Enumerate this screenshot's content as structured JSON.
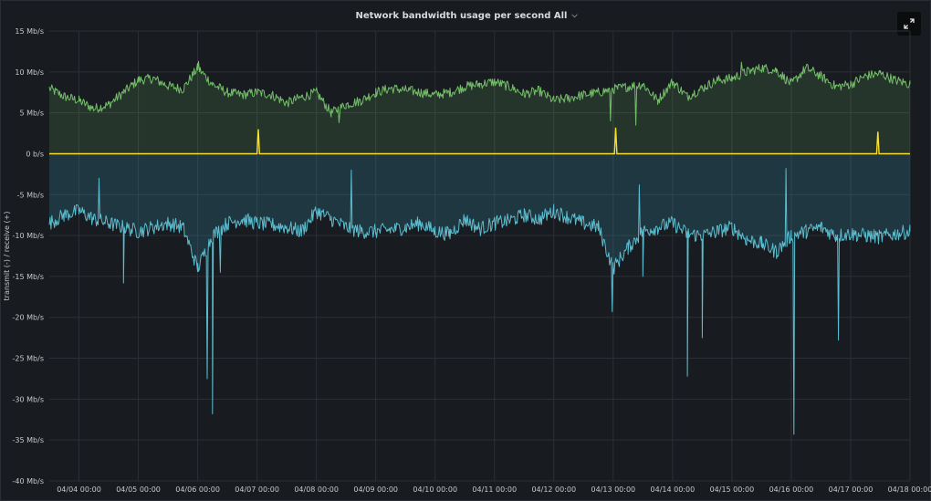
{
  "panel": {
    "title": "Network bandwidth usage per second All",
    "expand_icon": "expand-icon",
    "menu_icon": "chevron-down-icon"
  },
  "chart_data": {
    "type": "area",
    "title": "Network bandwidth usage per second All",
    "ylabel": "transmit (-) / receive (+)",
    "xlabel": "",
    "ylim": [
      -40,
      15
    ],
    "y_unit": "Mb/s",
    "y_ticks": [
      15,
      10,
      5,
      0,
      -5,
      -10,
      -15,
      -20,
      -25,
      -30,
      -35,
      -40
    ],
    "y_tick_labels": [
      "15 Mb/s",
      "10 Mb/s",
      "5 Mb/s",
      "0 b/s",
      "-5 Mb/s",
      "-10 Mb/s",
      "-15 Mb/s",
      "-20 Mb/s",
      "-25 Mb/s",
      "-30 Mb/s",
      "-35 Mb/s",
      "-40 Mb/s"
    ],
    "x_start": "04/03 12:00",
    "x_end": "04/18 00:00",
    "x_tick_labels": [
      "04/04 00:00",
      "04/05 00:00",
      "04/06 00:00",
      "04/07 00:00",
      "04/08 00:00",
      "04/09 00:00",
      "04/10 00:00",
      "04/11 00:00",
      "04/12 00:00",
      "04/13 00:00",
      "04/14 00:00",
      "04/15 00:00",
      "04/16 00:00",
      "04/17 00:00",
      "04/18 00:00"
    ],
    "grid": true,
    "legend": "none",
    "series": [
      {
        "role": "receive",
        "color": "#73bf69",
        "x": [
          "04/03 12:00",
          "04/03 18:00",
          "04/04 00:00",
          "04/04 06:00",
          "04/04 12:00",
          "04/04 18:00",
          "04/05 00:00",
          "04/05 06:00",
          "04/05 12:00",
          "04/05 18:00",
          "04/06 00:00",
          "04/06 06:00",
          "04/06 12:00",
          "04/06 18:00",
          "04/07 00:00",
          "04/07 06:00",
          "04/07 12:00",
          "04/07 18:00",
          "04/08 00:00",
          "04/08 06:00",
          "04/08 12:00",
          "04/08 18:00",
          "04/09 00:00",
          "04/09 06:00",
          "04/09 12:00",
          "04/09 18:00",
          "04/10 00:00",
          "04/10 06:00",
          "04/10 12:00",
          "04/10 18:00",
          "04/11 00:00",
          "04/11 06:00",
          "04/11 12:00",
          "04/11 18:00",
          "04/12 00:00",
          "04/12 06:00",
          "04/12 12:00",
          "04/12 18:00",
          "04/13 00:00",
          "04/13 06:00",
          "04/13 12:00",
          "04/13 18:00",
          "04/14 00:00",
          "04/14 06:00",
          "04/14 12:00",
          "04/14 18:00",
          "04/15 00:00",
          "04/15 06:00",
          "04/15 12:00",
          "04/15 18:00",
          "04/16 00:00",
          "04/16 06:00",
          "04/16 12:00",
          "04/16 18:00",
          "04/17 00:00",
          "04/17 06:00",
          "04/17 12:00",
          "04/17 18:00",
          "04/18 00:00"
        ],
        "values": [
          8,
          7,
          6.5,
          5.5,
          6,
          7.5,
          9,
          9.2,
          8.3,
          7.9,
          10.5,
          8.5,
          7.5,
          7.2,
          7.5,
          7.2,
          6.2,
          6.9,
          7.5,
          5,
          6,
          6.5,
          7.5,
          8,
          7.8,
          7.5,
          7.2,
          7.5,
          8.2,
          8.5,
          8.8,
          8.2,
          7.3,
          7.7,
          6.5,
          6.8,
          7.2,
          7.5,
          7.9,
          8.2,
          8.5,
          6.5,
          8.8,
          7,
          8,
          9,
          9.2,
          10,
          10.5,
          10.2,
          8.5,
          10.5,
          9.5,
          8.2,
          8.5,
          9.5,
          9.8,
          9,
          8.5
        ]
      },
      {
        "role": "transmit",
        "color": "#5bbdcf",
        "x": [
          "04/03 12:00",
          "04/03 18:00",
          "04/04 00:00",
          "04/04 06:00",
          "04/04 12:00",
          "04/04 18:00",
          "04/05 00:00",
          "04/05 06:00",
          "04/05 12:00",
          "04/05 18:00",
          "04/06 00:00",
          "04/06 06:00",
          "04/06 12:00",
          "04/06 18:00",
          "04/07 00:00",
          "04/07 06:00",
          "04/07 12:00",
          "04/07 18:00",
          "04/08 00:00",
          "04/08 06:00",
          "04/08 12:00",
          "04/08 18:00",
          "04/09 00:00",
          "04/09 06:00",
          "04/09 12:00",
          "04/09 18:00",
          "04/10 00:00",
          "04/10 06:00",
          "04/10 12:00",
          "04/10 18:00",
          "04/11 00:00",
          "04/11 06:00",
          "04/11 12:00",
          "04/11 18:00",
          "04/12 00:00",
          "04/12 06:00",
          "04/12 12:00",
          "04/12 18:00",
          "04/13 00:00",
          "04/13 06:00",
          "04/13 12:00",
          "04/13 18:00",
          "04/14 00:00",
          "04/14 06:00",
          "04/14 12:00",
          "04/14 18:00",
          "04/15 00:00",
          "04/15 06:00",
          "04/15 12:00",
          "04/15 18:00",
          "04/16 00:00",
          "04/16 06:00",
          "04/16 12:00",
          "04/16 18:00",
          "04/17 00:00",
          "04/17 06:00",
          "04/17 12:00",
          "04/17 18:00",
          "04/18 00:00"
        ],
        "values": [
          -8.5,
          -7.5,
          -7,
          -8,
          -8.5,
          -9,
          -9.5,
          -9,
          -8.5,
          -9,
          -14,
          -10,
          -8.5,
          -8,
          -8.5,
          -8.7,
          -9,
          -9.5,
          -7,
          -8,
          -9,
          -9.5,
          -9.5,
          -9.3,
          -9,
          -8.5,
          -9.5,
          -9.8,
          -8,
          -9.2,
          -8.5,
          -8.2,
          -7.5,
          -8,
          -7,
          -7.8,
          -8.5,
          -9,
          -14,
          -11.5,
          -9.5,
          -9,
          -8.5,
          -9.8,
          -10,
          -9.5,
          -9,
          -10.5,
          -11,
          -12,
          -10,
          -9.5,
          -9,
          -10,
          -9.8,
          -10,
          -10.2,
          -9.8,
          -9.5
        ]
      },
      {
        "role": "receive-errors",
        "color": "#fade2a",
        "x": [
          "04/03 12:00",
          "04/07 00:00",
          "04/07 00:30",
          "04/07 01:00",
          "04/13 00:30",
          "04/13 01:00",
          "04/13 01:30",
          "04/17 10:30",
          "04/17 11:00",
          "04/17 11:30",
          "04/18 00:00"
        ],
        "values": [
          0,
          0,
          3,
          0,
          0,
          3.2,
          0,
          0,
          2.7,
          0,
          0
        ]
      }
    ],
    "spikes": {
      "receive": [
        {
          "x": "04/06 00:30",
          "value": 11.3
        },
        {
          "x": "04/08 09:00",
          "value": 3.8
        },
        {
          "x": "04/12 23:00",
          "value": 4
        },
        {
          "x": "04/13 09:00",
          "value": 3.5
        },
        {
          "x": "04/15 04:00",
          "value": 11.2
        }
      ],
      "transmit": [
        {
          "x": "04/04 08:00",
          "value": -3
        },
        {
          "x": "04/04 18:00",
          "value": -15.8
        },
        {
          "x": "04/06 04:00",
          "value": -27.5
        },
        {
          "x": "04/06 06:00",
          "value": -31.8
        },
        {
          "x": "04/06 09:00",
          "value": -14.5
        },
        {
          "x": "04/08 14:00",
          "value": -2
        },
        {
          "x": "04/12 23:30",
          "value": -19.3
        },
        {
          "x": "04/13 10:30",
          "value": -3.8
        },
        {
          "x": "04/13 12:00",
          "value": -15
        },
        {
          "x": "04/14 06:00",
          "value": -27.2
        },
        {
          "x": "04/14 12:00",
          "value": -22.5
        },
        {
          "x": "04/15 22:00",
          "value": -1.8
        },
        {
          "x": "04/16 01:00",
          "value": -34.3
        },
        {
          "x": "04/16 19:00",
          "value": -22.8
        }
      ]
    }
  }
}
